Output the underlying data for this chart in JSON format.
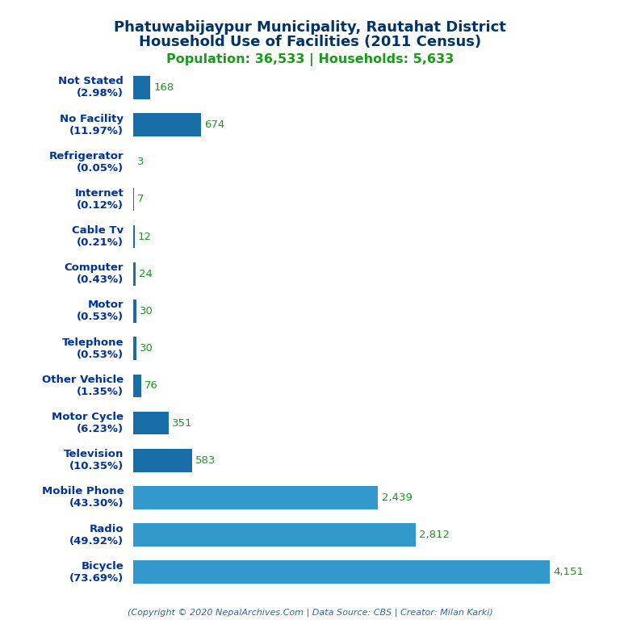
{
  "title_line1": "Phatuwabijaypur Municipality, Rautahat District",
  "title_line2": "Household Use of Facilities (2011 Census)",
  "subtitle": "Population: 36,533 | Households: 5,633",
  "categories": [
    "Not Stated\n(2.98%)",
    "No Facility\n(11.97%)",
    "Refrigerator\n(0.05%)",
    "Internet\n(0.12%)",
    "Cable Tv\n(0.21%)",
    "Computer\n(0.43%)",
    "Motor\n(0.53%)",
    "Telephone\n(0.53%)",
    "Other Vehicle\n(1.35%)",
    "Motor Cycle\n(6.23%)",
    "Television\n(10.35%)",
    "Mobile Phone\n(43.30%)",
    "Radio\n(49.92%)",
    "Bicycle\n(73.69%)"
  ],
  "values": [
    168,
    674,
    3,
    7,
    12,
    24,
    30,
    30,
    76,
    351,
    583,
    2439,
    2812,
    4151
  ],
  "bar_colors": [
    "#1a6ea8",
    "#1a6ea8",
    "#1a6ea8",
    "#1a6ea8",
    "#1a6ea8",
    "#1a6ea8",
    "#1a6ea8",
    "#1a6ea8",
    "#1a6ea8",
    "#1a6ea8",
    "#1a6ea8",
    "#3399cc",
    "#3399cc",
    "#3399cc"
  ],
  "title_color": "#003366",
  "subtitle_color": "#1a9a1a",
  "value_color": "#1a9a1a",
  "ylabel_color": "#003399",
  "copyright": "(Copyright © 2020 NepalArchives.Com | Data Source: CBS | Creator: Milan Karki)",
  "copyright_color": "#336699",
  "xlim": [
    0,
    4600
  ],
  "background_color": "#ffffff"
}
